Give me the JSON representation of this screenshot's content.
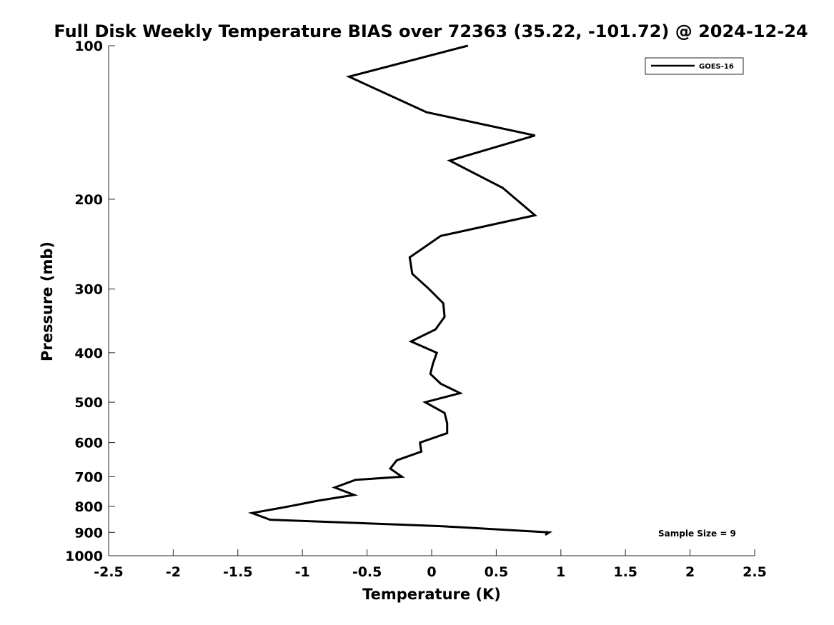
{
  "chart_data": {
    "type": "line",
    "title": "Full Disk Weekly Temperature BIAS over 72363 (35.22, -101.72) @ 2024-12-24",
    "xlabel": "Temperature (K)",
    "ylabel": "Pressure (mb)",
    "xlim": [
      -2.5,
      2.5
    ],
    "ylim": [
      100,
      1000
    ],
    "y_scale": "log",
    "y_reversed": true,
    "grid": false,
    "legend_position": "top-right",
    "x_ticks": [
      -2.5,
      -2,
      -1.5,
      -1,
      -0.5,
      0,
      0.5,
      1,
      1.5,
      2,
      2.5
    ],
    "x_tick_labels": [
      "-2.5",
      "-2",
      "-1.5",
      "-1",
      "-0.5",
      "0",
      "0.5",
      "1",
      "1.5",
      "2",
      "2.5"
    ],
    "y_ticks": [
      100,
      200,
      300,
      400,
      500,
      600,
      700,
      800,
      900,
      1000
    ],
    "y_tick_labels": [
      "100",
      "200",
      "300",
      "400",
      "500",
      "600",
      "700",
      "800",
      "900",
      "1000"
    ],
    "annotation": "Sample Size = 9",
    "series": [
      {
        "name": "GOES-16",
        "color": "#000000",
        "points": [
          {
            "x": 0.28,
            "p": 100
          },
          {
            "x": -0.64,
            "p": 115
          },
          {
            "x": -0.04,
            "p": 135
          },
          {
            "x": 0.8,
            "p": 150
          },
          {
            "x": 0.14,
            "p": 168
          },
          {
            "x": 0.55,
            "p": 190
          },
          {
            "x": 0.8,
            "p": 215
          },
          {
            "x": 0.07,
            "p": 236
          },
          {
            "x": -0.17,
            "p": 260
          },
          {
            "x": -0.15,
            "p": 280
          },
          {
            "x": -0.02,
            "p": 300
          },
          {
            "x": 0.09,
            "p": 320
          },
          {
            "x": 0.1,
            "p": 340
          },
          {
            "x": 0.03,
            "p": 360
          },
          {
            "x": -0.16,
            "p": 380
          },
          {
            "x": 0.04,
            "p": 400
          },
          {
            "x": 0.01,
            "p": 420
          },
          {
            "x": -0.01,
            "p": 440
          },
          {
            "x": 0.07,
            "p": 460
          },
          {
            "x": 0.22,
            "p": 480
          },
          {
            "x": -0.05,
            "p": 500
          },
          {
            "x": 0.1,
            "p": 525
          },
          {
            "x": 0.12,
            "p": 550
          },
          {
            "x": 0.12,
            "p": 575
          },
          {
            "x": -0.09,
            "p": 600
          },
          {
            "x": -0.08,
            "p": 625
          },
          {
            "x": -0.27,
            "p": 650
          },
          {
            "x": -0.32,
            "p": 675
          },
          {
            "x": -0.23,
            "p": 700
          },
          {
            "x": -0.59,
            "p": 710
          },
          {
            "x": -0.75,
            "p": 735
          },
          {
            "x": -0.6,
            "p": 760
          },
          {
            "x": -0.88,
            "p": 780
          },
          {
            "x": -1.1,
            "p": 800
          },
          {
            "x": -1.39,
            "p": 825
          },
          {
            "x": -1.25,
            "p": 850
          },
          {
            "x": 0.07,
            "p": 875
          },
          {
            "x": 0.91,
            "p": 900
          },
          {
            "x": 0.88,
            "p": 910
          }
        ]
      }
    ]
  }
}
